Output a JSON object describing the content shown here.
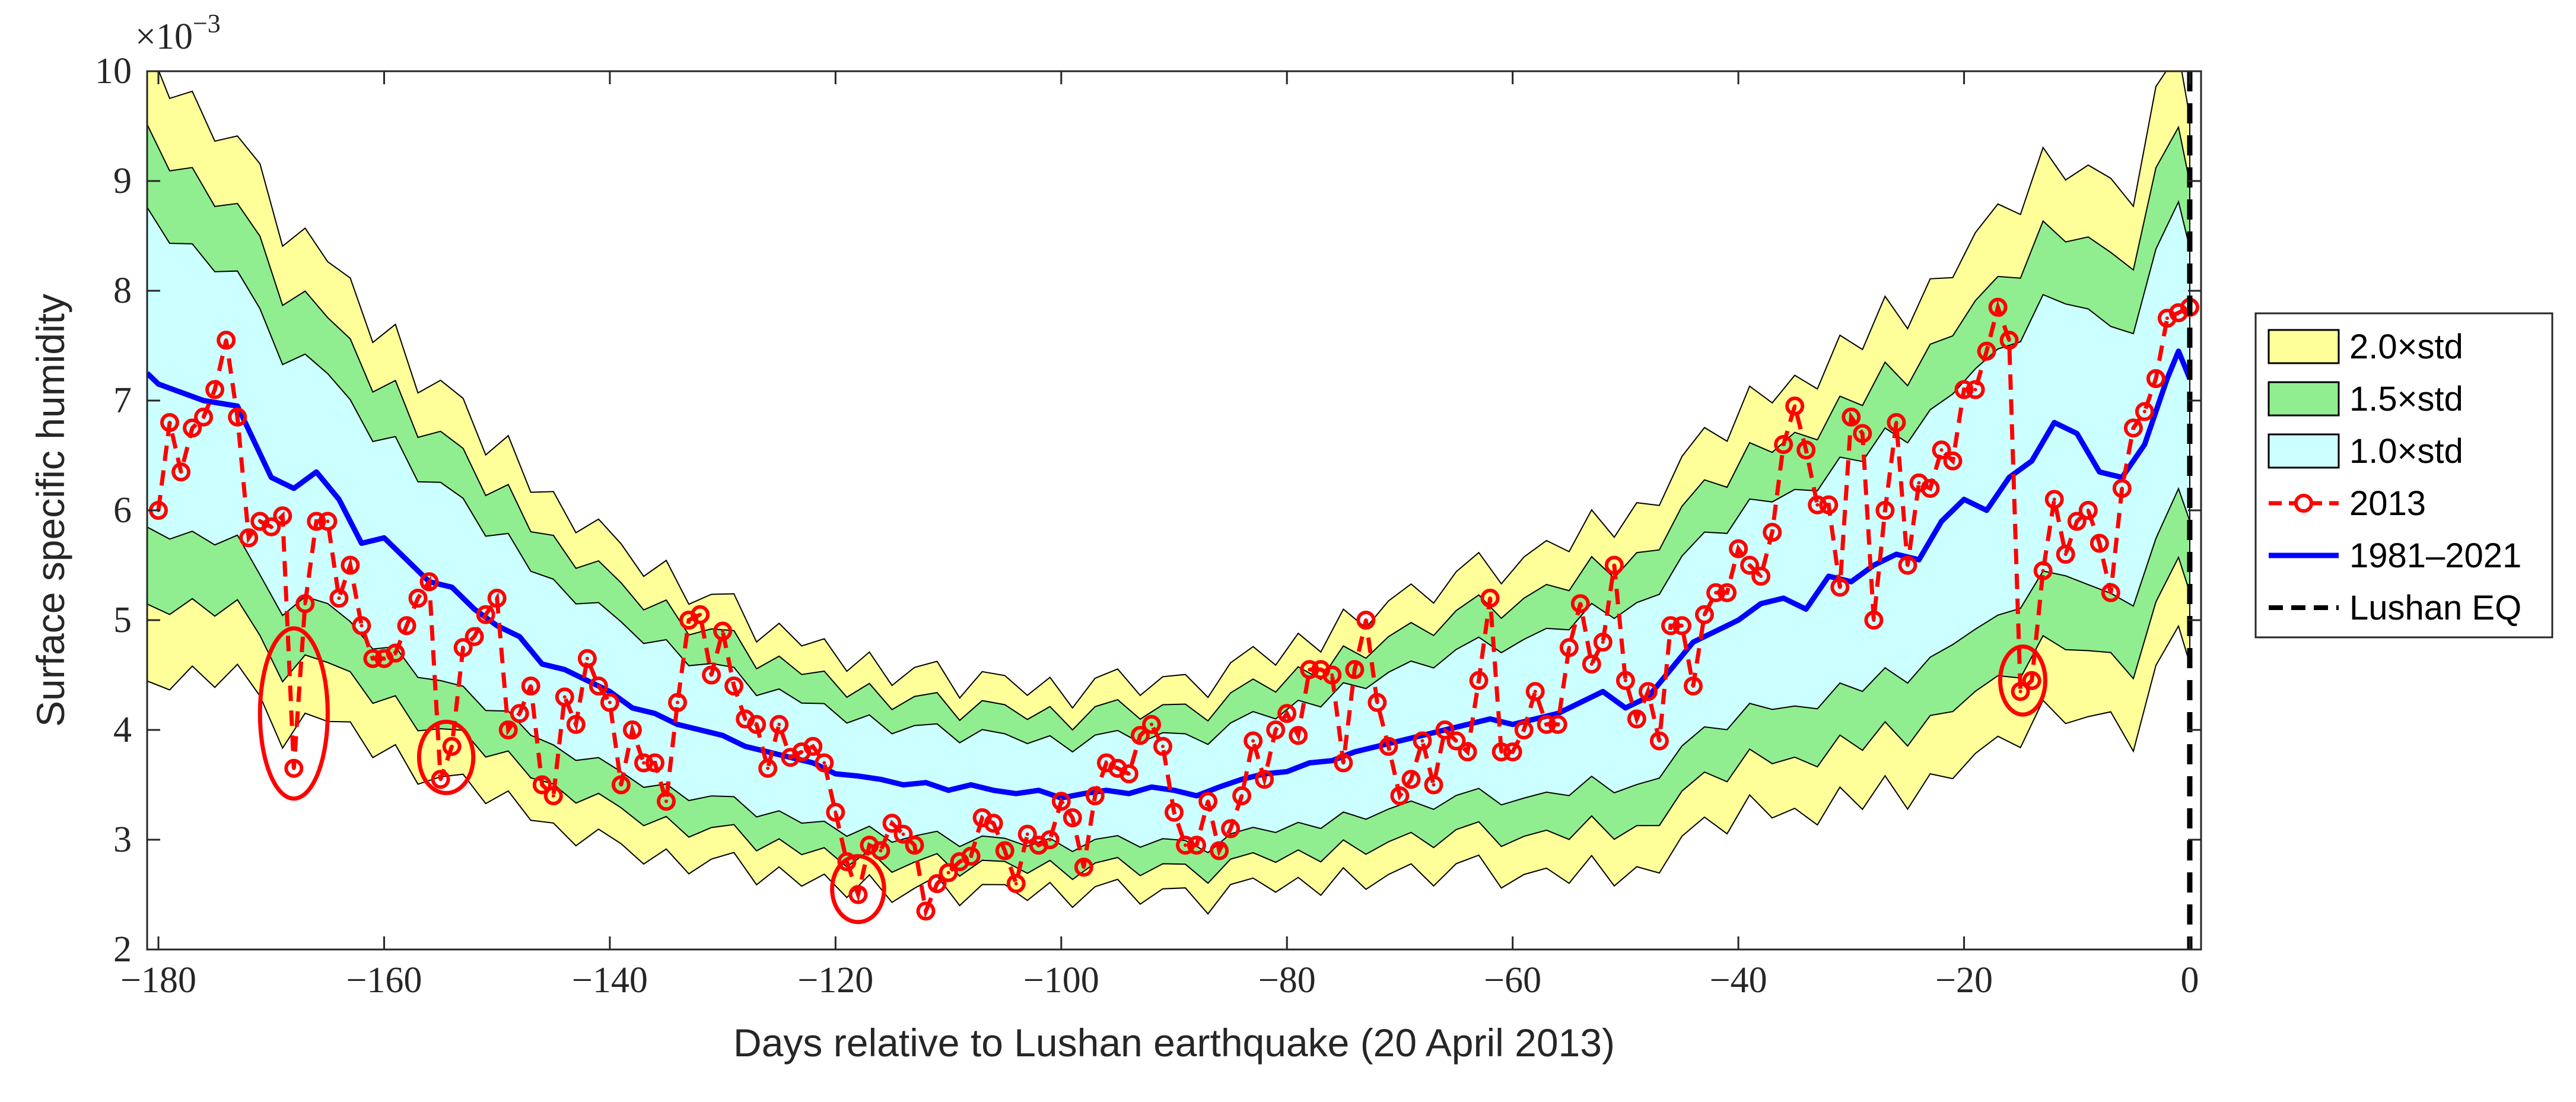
{
  "chart_data": {
    "type": "line",
    "xlabel": "Days relative to Lushan earthquake (20 April 2013)",
    "ylabel": "Surface specific humidity",
    "y_multiplier_label": "×10",
    "y_multiplier_exponent": "−3",
    "xlim": [
      -181,
      1
    ],
    "ylim": [
      2,
      10
    ],
    "xticks": [
      -180,
      -160,
      -140,
      -120,
      -100,
      -80,
      -60,
      -40,
      -20,
      0
    ],
    "xtick_labels": [
      "−180",
      "−160",
      "−140",
      "−120",
      "−100",
      "−80",
      "−60",
      "−40",
      "−20",
      "0"
    ],
    "yticks": [
      2,
      3,
      4,
      5,
      6,
      7,
      8,
      9,
      10
    ],
    "ytick_labels": [
      "2",
      "3",
      "4",
      "5",
      "6",
      "7",
      "8",
      "9",
      "10"
    ],
    "earthquake_day": 0,
    "mean_1981_2021": {
      "name": "1981–2021",
      "x": [
        -181,
        -180,
        -176,
        -173,
        -170,
        -168,
        -166,
        -164,
        -162,
        -160,
        -158,
        -156,
        -154,
        -152,
        -150,
        -148,
        -146,
        -144,
        -142,
        -140,
        -138,
        -136,
        -134,
        -132,
        -130,
        -128,
        -126,
        -124,
        -122,
        -120,
        -118,
        -116,
        -114,
        -112,
        -110,
        -108,
        -106,
        -104,
        -102,
        -100,
        -98,
        -96,
        -94,
        -92,
        -90,
        -88,
        -86,
        -84,
        -82,
        -80,
        -78,
        -76,
        -74,
        -72,
        -70,
        -68,
        -66,
        -64,
        -62,
        -60,
        -58,
        -56,
        -54,
        -52,
        -50,
        -48,
        -46,
        -44,
        -42,
        -40,
        -38,
        -36,
        -34,
        -32,
        -30,
        -28,
        -26,
        -24,
        -22,
        -20,
        -18,
        -16,
        -14,
        -12,
        -10,
        -8,
        -6,
        -4,
        -2,
        -1,
        0
      ],
      "y": [
        7.25,
        7.15,
        7.0,
        6.95,
        6.3,
        6.2,
        6.35,
        6.1,
        5.7,
        5.75,
        5.55,
        5.35,
        5.3,
        5.1,
        4.95,
        4.85,
        4.6,
        4.55,
        4.45,
        4.35,
        4.2,
        4.15,
        4.05,
        4.0,
        3.95,
        3.85,
        3.8,
        3.75,
        3.7,
        3.6,
        3.58,
        3.55,
        3.5,
        3.52,
        3.45,
        3.5,
        3.45,
        3.42,
        3.45,
        3.38,
        3.42,
        3.45,
        3.42,
        3.48,
        3.45,
        3.4,
        3.48,
        3.55,
        3.6,
        3.62,
        3.7,
        3.72,
        3.8,
        3.85,
        3.9,
        3.95,
        4.0,
        4.05,
        4.1,
        4.05,
        4.1,
        4.15,
        4.25,
        4.35,
        4.2,
        4.3,
        4.55,
        4.8,
        4.9,
        5.0,
        5.15,
        5.2,
        5.1,
        5.4,
        5.35,
        5.5,
        5.6,
        5.55,
        5.9,
        6.1,
        6.0,
        6.3,
        6.45,
        6.8,
        6.7,
        6.35,
        6.3,
        6.6,
        7.2,
        7.45,
        7.2
      ]
    },
    "std_x": [
      -181,
      -179,
      -177,
      -175,
      -173,
      -171,
      -169,
      -167,
      -165,
      -163,
      -161,
      -159,
      -157,
      -155,
      -153,
      -151,
      -149,
      -147,
      -145,
      -143,
      -141,
      -139,
      -137,
      -135,
      -133,
      -131,
      -129,
      -127,
      -125,
      -123,
      -121,
      -119,
      -117,
      -115,
      -113,
      -111,
      -109,
      -107,
      -105,
      -103,
      -101,
      -99,
      -97,
      -95,
      -93,
      -91,
      -89,
      -87,
      -85,
      -83,
      -81,
      -79,
      -77,
      -75,
      -73,
      -71,
      -69,
      -67,
      -65,
      -63,
      -61,
      -59,
      -57,
      -55,
      -53,
      -51,
      -49,
      -47,
      -45,
      -43,
      -41,
      -39,
      -37,
      -35,
      -33,
      -31,
      -29,
      -27,
      -25,
      -23,
      -21,
      -19,
      -17,
      -15,
      -13,
      -11,
      -9,
      -7,
      -5,
      -3,
      -1,
      0
    ],
    "std_halfwidth_1x": [
      1.45,
      1.35,
      1.3,
      1.25,
      1.2,
      1.2,
      1.15,
      1.1,
      1.05,
      1.0,
      0.95,
      0.95,
      0.9,
      0.9,
      0.85,
      0.8,
      0.8,
      0.75,
      0.75,
      0.72,
      0.7,
      0.68,
      0.66,
      0.65,
      0.62,
      0.6,
      0.58,
      0.56,
      0.55,
      0.55,
      0.53,
      0.52,
      0.5,
      0.5,
      0.5,
      0.48,
      0.48,
      0.48,
      0.47,
      0.47,
      0.46,
      0.46,
      0.47,
      0.47,
      0.48,
      0.48,
      0.48,
      0.5,
      0.5,
      0.52,
      0.52,
      0.55,
      0.56,
      0.58,
      0.6,
      0.62,
      0.63,
      0.65,
      0.66,
      0.68,
      0.7,
      0.72,
      0.74,
      0.76,
      0.78,
      0.8,
      0.82,
      0.84,
      0.86,
      0.88,
      0.9,
      0.92,
      0.95,
      0.98,
      1.0,
      1.02,
      1.05,
      1.08,
      1.1,
      1.12,
      1.15,
      1.18,
      1.2,
      1.22,
      1.25,
      1.25,
      1.25,
      1.2,
      1.25,
      1.3,
      1.3,
      1.25
    ],
    "noise": [
      0.1,
      -0.05,
      0.15,
      -0.1,
      0.05,
      0.2,
      -0.12,
      0.08,
      -0.05,
      0.18,
      -0.08,
      0.12,
      -0.15,
      0.05,
      0.1,
      -0.1,
      0.15,
      -0.05,
      0.08,
      -0.12,
      0.1,
      0.05,
      -0.08,
      0.12,
      -0.1,
      0.05,
      0.15,
      -0.12,
      0.08,
      -0.05,
      0.1,
      -0.08,
      0.12,
      -0.1,
      0.05,
      0.15,
      -0.12,
      0.08,
      0.1,
      -0.05,
      0.12,
      -0.1,
      0.08,
      0.15,
      -0.08,
      0.05,
      0.1,
      -0.12,
      0.08,
      0.12,
      -0.05,
      0.1,
      -0.1,
      0.15,
      -0.08,
      0.05,
      0.12,
      -0.1,
      0.08,
      0.15,
      -0.12,
      0.05,
      0.1,
      -0.08,
      0.12,
      -0.1,
      0.15,
      -0.05,
      0.08,
      0.12,
      -0.1,
      0.18,
      -0.08,
      0.1,
      -0.12,
      0.15,
      -0.05,
      0.2,
      -0.1,
      0.12,
      -0.15,
      0.1,
      0.2,
      -0.1,
      0.15,
      -0.2,
      0.1,
      0.25,
      -0.15,
      0.3,
      0.1,
      -0.1
    ],
    "obs_2013": {
      "name": "2013",
      "x": [
        -180,
        -179,
        -178,
        -177,
        -176,
        -175,
        -174,
        -173,
        -172,
        -171,
        -170,
        -169,
        -168,
        -167,
        -166,
        -165,
        -164,
        -163,
        -162,
        -161,
        -160,
        -159,
        -158,
        -157,
        -156,
        -155,
        -154,
        -153,
        -152,
        -151,
        -150,
        -149,
        -148,
        -147,
        -146,
        -145,
        -144,
        -143,
        -142,
        -141,
        -140,
        -139,
        -138,
        -137,
        -136,
        -135,
        -134,
        -133,
        -132,
        -131,
        -130,
        -129,
        -128,
        -127,
        -126,
        -125,
        -124,
        -123,
        -122,
        -121,
        -120,
        -119,
        -118,
        -117,
        -116,
        -115,
        -114,
        -113,
        -112,
        -111,
        -110,
        -109,
        -108,
        -107,
        -106,
        -105,
        -104,
        -103,
        -102,
        -101,
        -100,
        -99,
        -98,
        -97,
        -96,
        -95,
        -94,
        -93,
        -92,
        -91,
        -90,
        -89,
        -88,
        -87,
        -86,
        -85,
        -84,
        -83,
        -82,
        -81,
        -80,
        -79,
        -78,
        -77,
        -76,
        -75,
        -74,
        -73,
        -72,
        -71,
        -70,
        -69,
        -68,
        -67,
        -66,
        -65,
        -64,
        -63,
        -62,
        -61,
        -60,
        -59,
        -58,
        -57,
        -56,
        -55,
        -54,
        -53,
        -52,
        -51,
        -50,
        -49,
        -48,
        -47,
        -46,
        -45,
        -44,
        -43,
        -42,
        -41,
        -40,
        -39,
        -38,
        -37,
        -36,
        -35,
        -34,
        -33,
        -32,
        -31,
        -30,
        -29,
        -28,
        -27,
        -26,
        -25,
        -24,
        -23,
        -22,
        -21,
        -20,
        -19,
        -18,
        -17,
        -16,
        -15,
        -14,
        -13,
        -12,
        -11,
        -10,
        -9,
        -8,
        -7,
        -6,
        -5,
        -4,
        -3,
        -2,
        -1,
        0
      ],
      "y": [
        6.0,
        6.8,
        6.35,
        6.75,
        6.85,
        7.1,
        7.55,
        6.85,
        5.75,
        5.9,
        5.85,
        5.95,
        3.65,
        5.15,
        5.9,
        5.9,
        5.2,
        5.5,
        4.95,
        4.65,
        4.65,
        4.7,
        4.95,
        5.2,
        5.35,
        3.55,
        3.85,
        4.75,
        4.85,
        5.05,
        5.2,
        4.0,
        4.15,
        4.4,
        3.5,
        3.4,
        4.3,
        4.05,
        4.65,
        4.4,
        4.25,
        3.5,
        4.0,
        3.7,
        3.7,
        3.35,
        4.25,
        5.0,
        5.05,
        4.5,
        4.9,
        4.4,
        4.1,
        4.05,
        3.65,
        4.05,
        3.75,
        3.8,
        3.85,
        3.7,
        3.25,
        2.8,
        2.5,
        2.95,
        2.9,
        3.15,
        3.05,
        2.95,
        2.35,
        2.6,
        2.7,
        2.8,
        2.85,
        3.2,
        3.15,
        2.9,
        2.6,
        3.05,
        2.95,
        3.0,
        3.35,
        3.2,
        2.75,
        3.4,
        3.7,
        3.65,
        3.6,
        3.95,
        4.05,
        3.85,
        3.25,
        2.95,
        2.95,
        3.35,
        2.9,
        3.1,
        3.4,
        3.9,
        3.55,
        4.0,
        4.15,
        3.95,
        4.55,
        4.55,
        4.5,
        3.7,
        4.55,
        5.0,
        4.25,
        3.85,
        3.4,
        3.55,
        3.9,
        3.5,
        4.0,
        3.9,
        3.8,
        4.45,
        5.2,
        3.8,
        3.8,
        4.0,
        4.35,
        4.05,
        4.05,
        4.75,
        5.15,
        4.6,
        4.8,
        5.5,
        4.45,
        4.1,
        4.35,
        3.9,
        4.95,
        4.95,
        4.4,
        5.05,
        5.25,
        5.25,
        5.65,
        5.5,
        5.4,
        5.8,
        6.6,
        6.95,
        6.55,
        6.05,
        6.05,
        5.3,
        6.85,
        6.7,
        5.0,
        6.0,
        6.8,
        5.5,
        6.25,
        6.2,
        6.55,
        6.45,
        7.1,
        7.1,
        7.45,
        7.85,
        7.55,
        4.35,
        4.45,
        5.45,
        6.1,
        5.6,
        5.9,
        6.0,
        5.7,
        5.25,
        6.2,
        6.75,
        6.9,
        7.2,
        7.75,
        7.8,
        7.85
      ]
    },
    "highlight_ellipses": [
      {
        "center_day": -168,
        "center_value": 4.15,
        "span_days": 6,
        "span_value": 1.55
      },
      {
        "center_day": -154.5,
        "center_value": 3.75,
        "span_days": 4.8,
        "span_value": 0.65
      },
      {
        "center_day": -118,
        "center_value": 2.55,
        "span_days": 4.6,
        "span_value": 0.6
      },
      {
        "center_day": -14.8,
        "center_value": 4.45,
        "span_days": 4,
        "span_value": 0.62
      }
    ],
    "legend": {
      "placement": "right",
      "entries": [
        {
          "label": "2.0×std",
          "kind": "patch",
          "color": "#ffff99"
        },
        {
          "label": "1.5×std",
          "kind": "patch",
          "color": "#90ee90"
        },
        {
          "label": "1.0×std",
          "kind": "patch",
          "color": "#ccffff"
        },
        {
          "label": "2013",
          "kind": "line-marker",
          "color": "#ff0000"
        },
        {
          "label": "1981–2021",
          "kind": "line",
          "color": "#0000ff"
        },
        {
          "label": "Lushan EQ",
          "kind": "dashed-line",
          "color": "#000000"
        }
      ]
    },
    "colors": {
      "band_2x": "#ffff99",
      "band_1_5x": "#90ee90",
      "band_1x": "#ccffff",
      "obs": "#ff0000",
      "mean": "#0000ff",
      "eq_line": "#000000",
      "axis": "#262626"
    }
  }
}
